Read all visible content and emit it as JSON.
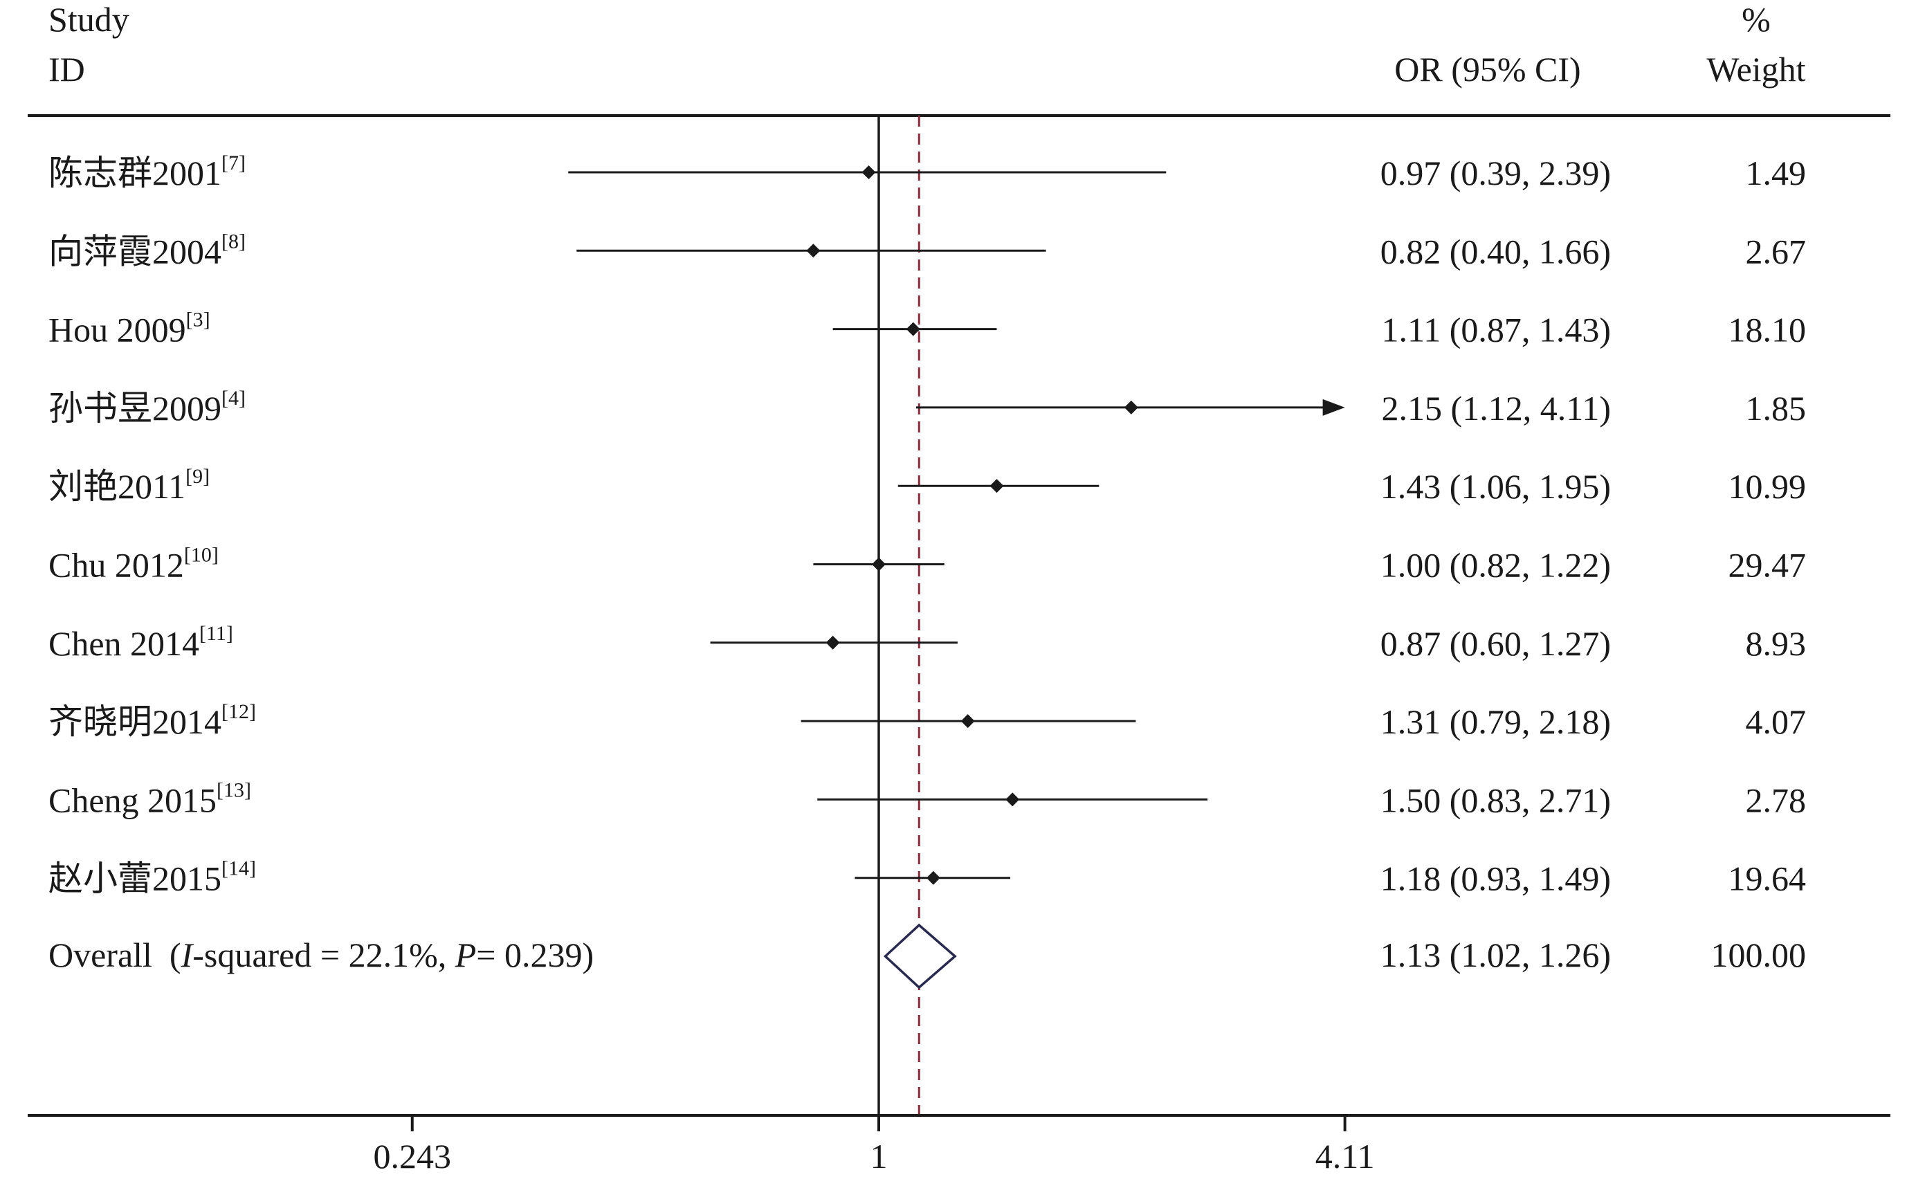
{
  "chart_data": {
    "type": "forest",
    "xscale": "log",
    "x_ticks": [
      {
        "value": 0.243,
        "label": "0.243"
      },
      {
        "value": 1,
        "label": "1"
      },
      {
        "value": 4.11,
        "label": "4.11"
      }
    ],
    "null_line": 1,
    "overall_line": 1.13,
    "header": {
      "study_line1": "Study",
      "study_line2": "ID",
      "effect_label": "OR (95% CI)",
      "weight_line1": "%",
      "weight_line2": "Weight"
    },
    "studies": [
      {
        "name": "陈志群2001",
        "ref": "[7]",
        "or": 0.97,
        "lower": 0.39,
        "upper": 2.39,
        "ci_text": "0.97 (0.39, 2.39)",
        "weight": "1.49"
      },
      {
        "name": "向萍霞2004",
        "ref": "[8]",
        "or": 0.82,
        "lower": 0.4,
        "upper": 1.66,
        "ci_text": "0.82 (0.40, 1.66)",
        "weight": "2.67"
      },
      {
        "name": "Hou 2009",
        "ref": "[3]",
        "or": 1.11,
        "lower": 0.87,
        "upper": 1.43,
        "ci_text": "1.11 (0.87, 1.43)",
        "weight": "18.10"
      },
      {
        "name": "孙书昱2009",
        "ref": "[4]",
        "or": 2.15,
        "lower": 1.12,
        "upper": 4.11,
        "ci_text": "2.15 (1.12, 4.11)",
        "weight": "1.85",
        "arrow_right": true
      },
      {
        "name": "刘艳2011",
        "ref": "[9]",
        "or": 1.43,
        "lower": 1.06,
        "upper": 1.95,
        "ci_text": "1.43 (1.06, 1.95)",
        "weight": "10.99"
      },
      {
        "name": "Chu 2012",
        "ref": "[10]",
        "or": 1.0,
        "lower": 0.82,
        "upper": 1.22,
        "ci_text": "1.00 (0.82, 1.22)",
        "weight": "29.47"
      },
      {
        "name": "Chen 2014",
        "ref": "[11]",
        "or": 0.87,
        "lower": 0.6,
        "upper": 1.27,
        "ci_text": "0.87 (0.60, 1.27)",
        "weight": "8.93"
      },
      {
        "name": "齐晓明2014",
        "ref": "[12]",
        "or": 1.31,
        "lower": 0.79,
        "upper": 2.18,
        "ci_text": "1.31 (0.79, 2.18)",
        "weight": "4.07"
      },
      {
        "name": "Cheng 2015",
        "ref": "[13]",
        "or": 1.5,
        "lower": 0.83,
        "upper": 2.71,
        "ci_text": "1.50 (0.83, 2.71)",
        "weight": "2.78"
      },
      {
        "name": "赵小蕾2015",
        "ref": "[14]",
        "or": 1.18,
        "lower": 0.93,
        "upper": 1.49,
        "ci_text": "1.18 (0.93, 1.49)",
        "weight": "19.64"
      }
    ],
    "overall": {
      "label_prefix": "Overall  (",
      "label_i": "I",
      "label_mid": "-squared = 22.1%, ",
      "label_p": "P",
      "label_end": "= 0.239)",
      "or": 1.13,
      "lower": 1.02,
      "upper": 1.26,
      "ci_text": "1.13 (1.02, 1.26)",
      "weight": "100.00"
    },
    "colors": {
      "ink": "#1a1a1a",
      "overall_line": "#8b2a3a",
      "diamond": "#2a2a50"
    }
  }
}
